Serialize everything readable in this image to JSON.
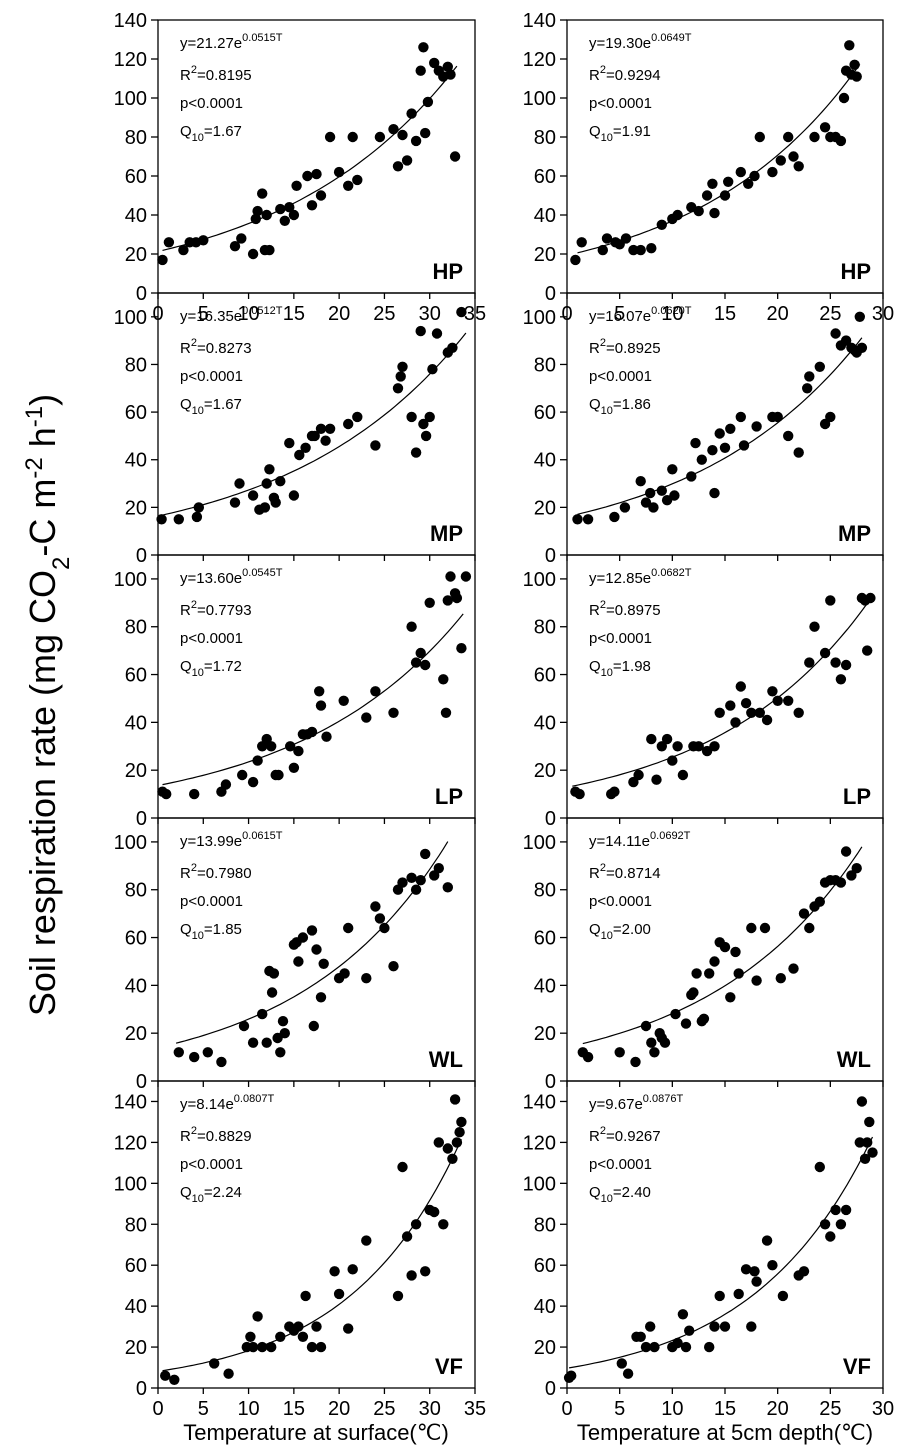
{
  "figure": {
    "ylabel_html": [
      "Soil respiration rate (mg CO",
      "2",
      "-C m",
      "-2",
      " h",
      "-1",
      ")"
    ],
    "xlabels": [
      "Temperature at surface(℃)",
      "Temperature at 5cm depth(℃)"
    ]
  },
  "chart_data": [
    {
      "type": "scatter",
      "site": "HP",
      "col": 0,
      "row": 0,
      "x": [
        0.5,
        1.2,
        2.8,
        3.5,
        4.2,
        5.0,
        8.5,
        9.2,
        10.5,
        10.8,
        11.0,
        11.5,
        11.8,
        12.0,
        12.3,
        13.5,
        14.0,
        14.5,
        15.0,
        15.3,
        16.5,
        17.0,
        17.5,
        18.0,
        19.0,
        20.0,
        21.0,
        21.5,
        22.0,
        24.5,
        26.0,
        26.5,
        27.0,
        27.5,
        28.0,
        28.5,
        29.0,
        29.3,
        29.5,
        29.8,
        30.5,
        31.0,
        31.5,
        32.0,
        32.3,
        32.8
      ],
      "y": [
        17,
        26,
        22,
        26,
        26,
        27,
        24,
        28,
        20,
        38,
        42,
        51,
        22,
        40,
        22,
        43,
        37,
        44,
        40,
        55,
        60,
        45,
        61,
        50,
        80,
        62,
        55,
        80,
        58,
        80,
        84,
        65,
        81,
        68,
        92,
        78,
        114,
        126,
        82,
        98,
        118,
        114,
        111,
        116,
        112,
        70
      ],
      "xlim": [
        0,
        35
      ],
      "ylim": [
        0,
        140
      ],
      "xticks": [
        0,
        5,
        10,
        15,
        20,
        25,
        30,
        35
      ],
      "yticks": [
        0,
        20,
        40,
        60,
        80,
        100,
        120,
        140
      ],
      "fit": {
        "a": 21.27,
        "b": 0.0515,
        "xmin": 0.5,
        "xmax": 33
      },
      "eq": {
        "base": "y=21.27e",
        "exp": "0.0515T"
      },
      "r2": "=0.8195",
      "p": "p<0.0001",
      "q10": "=1.67"
    },
    {
      "type": "scatter",
      "site": "HP",
      "col": 1,
      "row": 0,
      "x": [
        0.8,
        1.4,
        3.4,
        3.8,
        4.6,
        5.0,
        5.6,
        6.3,
        7.0,
        8.0,
        9.0,
        10.0,
        10.5,
        11.8,
        12.5,
        13.3,
        13.8,
        14.0,
        15.0,
        15.3,
        16.5,
        17.2,
        17.8,
        18.3,
        19.5,
        20.3,
        21.0,
        21.5,
        22.0,
        23.5,
        24.5,
        25.0,
        25.5,
        26.0,
        26.3,
        26.5,
        26.8,
        27.0,
        27.3,
        27.5
      ],
      "y": [
        17,
        26,
        22,
        28,
        26,
        25,
        28,
        22,
        22,
        23,
        35,
        38,
        40,
        44,
        42,
        50,
        56,
        41,
        50,
        57,
        62,
        56,
        60,
        80,
        62,
        68,
        80,
        70,
        65,
        80,
        85,
        80,
        80,
        78,
        100,
        114,
        127,
        112,
        117,
        111
      ],
      "xlim": [
        0,
        30
      ],
      "ylim": [
        0,
        140
      ],
      "xticks": [
        0,
        5,
        10,
        15,
        20,
        25,
        30
      ],
      "yticks": [
        0,
        20,
        40,
        60,
        80,
        100,
        120,
        140
      ],
      "fit": {
        "a": 19.3,
        "b": 0.0649,
        "xmin": 1,
        "xmax": 27.8
      },
      "eq": {
        "base": "y=19.30e",
        "exp": "0.0649T"
      },
      "r2": "=0.9294",
      "p": "p<0.0001",
      "q10": "=1.91"
    },
    {
      "type": "scatter",
      "site": "MP",
      "col": 0,
      "row": 1,
      "x": [
        0.4,
        2.3,
        4.3,
        4.5,
        8.5,
        9.0,
        10.5,
        11.2,
        11.8,
        12.0,
        12.3,
        12.8,
        13.0,
        13.5,
        14.5,
        15.0,
        15.6,
        16.3,
        17.0,
        17.3,
        18.0,
        18.5,
        19.0,
        21.0,
        22.0,
        24.0,
        26.5,
        26.8,
        27.0,
        28.0,
        28.5,
        29.0,
        29.3,
        29.6,
        30.0,
        30.3,
        30.8,
        32.0,
        32.5,
        33.5
      ],
      "y": [
        15,
        15,
        16,
        20,
        22,
        30,
        25,
        19,
        20,
        30,
        36,
        24,
        22,
        31,
        47,
        25,
        42,
        45,
        50,
        50,
        53,
        48,
        53,
        55,
        58,
        46,
        70,
        75,
        79,
        58,
        43,
        94,
        55,
        50,
        58,
        78,
        93,
        85,
        87,
        102
      ],
      "xlim": [
        0,
        35
      ],
      "ylim": [
        0,
        110
      ],
      "xticks": [],
      "yticks": [
        0,
        20,
        40,
        60,
        80,
        100
      ],
      "fit": {
        "a": 16.35,
        "b": 0.0512,
        "xmin": 0.4,
        "xmax": 34
      },
      "eq": {
        "base": "y=16.35e",
        "exp": "0.0512T"
      },
      "r2": "=0.8273",
      "p": "p<0.0001",
      "q10": "=1.67"
    },
    {
      "type": "scatter",
      "site": "MP",
      "col": 1,
      "row": 1,
      "x": [
        1.0,
        2.0,
        4.5,
        5.5,
        7.0,
        7.5,
        7.9,
        8.2,
        9.0,
        9.5,
        10.0,
        10.2,
        11.8,
        12.2,
        12.8,
        13.8,
        14.0,
        14.5,
        15.0,
        15.5,
        16.5,
        16.8,
        18.0,
        19.5,
        20.0,
        21.0,
        22.0,
        22.8,
        23.0,
        24.0,
        24.5,
        25.0,
        25.5,
        26.0,
        26.5,
        27.0,
        27.3,
        27.5,
        27.8,
        28.0
      ],
      "y": [
        15,
        15,
        16,
        20,
        31,
        22,
        26,
        20,
        27,
        23,
        36,
        25,
        33,
        47,
        40,
        44,
        26,
        51,
        45,
        53,
        58,
        46,
        54,
        58,
        58,
        50,
        43,
        70,
        75,
        79,
        55,
        58,
        93,
        88,
        90,
        87,
        86,
        85,
        100,
        87
      ],
      "xlim": [
        0,
        30
      ],
      "ylim": [
        0,
        110
      ],
      "xticks": [],
      "yticks": [
        0,
        20,
        40,
        60,
        80,
        100
      ],
      "fit": {
        "a": 16.07,
        "b": 0.062,
        "xmin": 1,
        "xmax": 28
      },
      "eq": {
        "base": "y=16.07e",
        "exp": "0.0620T"
      },
      "r2": "=0.8925",
      "p": "p<0.0001",
      "q10": "=1.86"
    },
    {
      "type": "scatter",
      "site": "LP",
      "col": 0,
      "row": 2,
      "x": [
        0.5,
        0.9,
        4.0,
        7.0,
        7.5,
        9.3,
        10.5,
        11.0,
        11.5,
        12.0,
        12.5,
        13.0,
        13.3,
        14.6,
        15.0,
        15.5,
        16.0,
        16.5,
        17.0,
        17.8,
        18.0,
        18.6,
        20.5,
        23.0,
        24.0,
        26.0,
        28.0,
        28.5,
        29.0,
        29.5,
        30.0,
        31.5,
        31.8,
        32.0,
        32.3,
        32.8,
        33.0,
        33.5,
        34.0
      ],
      "y": [
        11,
        10,
        10,
        11,
        14,
        18,
        15,
        24,
        30,
        33,
        30,
        18,
        18,
        30,
        21,
        28,
        35,
        35,
        36,
        53,
        47,
        34,
        49,
        42,
        53,
        44,
        80,
        65,
        69,
        64,
        90,
        58,
        44,
        91,
        101,
        94,
        92,
        71,
        101
      ],
      "xlim": [
        0,
        35
      ],
      "ylim": [
        0,
        110
      ],
      "xticks": [],
      "yticks": [
        0,
        20,
        40,
        60,
        80,
        100
      ],
      "fit": {
        "a": 13.6,
        "b": 0.0545,
        "xmin": 0.5,
        "xmax": 33.7
      },
      "eq": {
        "base": "y=13.60e",
        "exp": "0.0545T"
      },
      "r2": "=0.7793",
      "p": "p<0.0001",
      "q10": "=1.72"
    },
    {
      "type": "scatter",
      "site": "LP",
      "col": 1,
      "row": 2,
      "x": [
        0.8,
        1.2,
        4.2,
        4.5,
        6.3,
        6.8,
        8.0,
        8.5,
        9.0,
        9.5,
        10.0,
        10.5,
        11.0,
        12.0,
        12.5,
        13.3,
        14.0,
        14.5,
        15.5,
        16.0,
        16.5,
        17.0,
        17.5,
        18.3,
        19.0,
        19.5,
        20.0,
        21.0,
        22.0,
        23.0,
        23.5,
        24.5,
        25.0,
        25.5,
        26.0,
        26.5,
        28.0,
        28.3,
        28.5,
        28.8
      ],
      "y": [
        11,
        10,
        10,
        11,
        15,
        18,
        33,
        16,
        30,
        33,
        24,
        30,
        18,
        30,
        30,
        28,
        30,
        44,
        47,
        40,
        55,
        48,
        44,
        44,
        41,
        53,
        49,
        49,
        44,
        65,
        80,
        69,
        91,
        65,
        58,
        64,
        92,
        91,
        70,
        92
      ],
      "xlim": [
        0,
        30
      ],
      "ylim": [
        0,
        110
      ],
      "xticks": [],
      "yticks": [
        0,
        20,
        40,
        60,
        80,
        100
      ],
      "fit": {
        "a": 12.85,
        "b": 0.0682,
        "xmin": 0.5,
        "xmax": 29
      },
      "eq": {
        "base": "y=12.85e",
        "exp": "0.0682T"
      },
      "r2": "=0.8975",
      "p": "p<0.0001",
      "q10": "=1.98"
    },
    {
      "type": "scatter",
      "site": "WL",
      "col": 0,
      "row": 3,
      "x": [
        2.3,
        4.0,
        5.5,
        7.0,
        9.5,
        10.5,
        11.5,
        12.0,
        12.3,
        12.6,
        12.8,
        13.2,
        13.5,
        13.8,
        14.0,
        15.0,
        15.3,
        15.5,
        16.0,
        17.0,
        17.2,
        17.5,
        18.0,
        18.3,
        20.0,
        20.6,
        21.0,
        23.0,
        24.0,
        24.5,
        25.0,
        26.0,
        26.5,
        27.0,
        28.0,
        28.5,
        29.0,
        29.5,
        30.5,
        31.0,
        32.0
      ],
      "y": [
        12,
        10,
        12,
        8,
        23,
        16,
        28,
        16,
        46,
        37,
        45,
        18,
        12,
        25,
        20,
        57,
        58,
        50,
        60,
        63,
        23,
        55,
        35,
        49,
        43,
        45,
        64,
        43,
        73,
        68,
        64,
        48,
        80,
        83,
        85,
        80,
        84,
        95,
        86,
        89,
        81
      ],
      "xlim": [
        0,
        35
      ],
      "ylim": [
        0,
        110
      ],
      "xticks": [],
      "yticks": [
        0,
        20,
        40,
        60,
        80,
        100
      ],
      "fit": {
        "a": 13.99,
        "b": 0.0615,
        "xmin": 2,
        "xmax": 32
      },
      "eq": {
        "base": "y=13.99e",
        "exp": "0.0615T"
      },
      "r2": "=0.7980",
      "p": "p<0.0001",
      "q10": "=1.85"
    },
    {
      "type": "scatter",
      "site": "WL",
      "col": 1,
      "row": 3,
      "x": [
        1.5,
        2.0,
        5.0,
        6.5,
        7.5,
        8.0,
        8.3,
        8.8,
        9.0,
        9.3,
        10.3,
        11.3,
        11.8,
        12.0,
        12.3,
        12.8,
        13.0,
        13.5,
        14.0,
        14.5,
        15.0,
        15.5,
        16.0,
        16.3,
        17.5,
        18.0,
        18.8,
        20.3,
        21.5,
        22.5,
        23.0,
        23.5,
        24.0,
        24.5,
        25.0,
        25.5,
        26.0,
        26.5,
        27.0,
        27.5
      ],
      "y": [
        12,
        10,
        12,
        8,
        23,
        16,
        12,
        20,
        18,
        16,
        28,
        24,
        36,
        37,
        45,
        25,
        26,
        45,
        50,
        58,
        56,
        35,
        54,
        45,
        64,
        42,
        64,
        43,
        47,
        70,
        64,
        73,
        75,
        83,
        84,
        84,
        83,
        96,
        86,
        89
      ],
      "xlim": [
        0,
        30
      ],
      "ylim": [
        0,
        110
      ],
      "xticks": [],
      "yticks": [
        0,
        20,
        40,
        60,
        80,
        100
      ],
      "fit": {
        "a": 14.11,
        "b": 0.0692,
        "xmin": 1.5,
        "xmax": 28
      },
      "eq": {
        "base": "y=14.11e",
        "exp": "0.0692T"
      },
      "r2": "=0.8714",
      "p": "p<0.0001",
      "q10": "=2.00"
    },
    {
      "type": "scatter",
      "site": "VF",
      "col": 0,
      "row": 4,
      "x": [
        0.8,
        1.8,
        6.2,
        7.8,
        9.8,
        10.2,
        10.5,
        11.0,
        11.5,
        12.5,
        13.5,
        14.5,
        15.0,
        15.5,
        16.0,
        16.3,
        17.0,
        17.5,
        18.0,
        19.5,
        20.0,
        21.0,
        21.5,
        23.0,
        26.5,
        27.0,
        27.5,
        28.0,
        28.5,
        29.5,
        30.0,
        30.5,
        31.0,
        31.5,
        32.0,
        32.5,
        32.8,
        33.0,
        33.3,
        33.5
      ],
      "y": [
        6,
        4,
        12,
        7,
        20,
        25,
        20,
        35,
        20,
        20,
        25,
        30,
        28,
        30,
        25,
        45,
        20,
        30,
        20,
        57,
        46,
        29,
        58,
        72,
        45,
        108,
        74,
        55,
        80,
        57,
        87,
        86,
        120,
        80,
        117,
        112,
        141,
        120,
        125,
        130
      ],
      "xlim": [
        0,
        35
      ],
      "ylim": [
        0,
        150
      ],
      "xticks": [
        0,
        5,
        10,
        15,
        20,
        25,
        30,
        35
      ],
      "yticks": [
        0,
        20,
        40,
        60,
        80,
        100,
        120,
        140
      ],
      "fit": {
        "a": 8.14,
        "b": 0.0807,
        "xmin": 0.5,
        "xmax": 33.5
      },
      "eq": {
        "base": "y=8.14e",
        "exp": "0.0807T"
      },
      "r2": "=0.8829",
      "p": "p<0.0001",
      "q10": "=2.24"
    },
    {
      "type": "scatter",
      "site": "VF",
      "col": 1,
      "row": 4,
      "x": [
        0.2,
        0.4,
        5.2,
        5.8,
        6.6,
        7.0,
        7.5,
        7.9,
        8.3,
        10.0,
        10.5,
        11.0,
        11.3,
        11.6,
        13.5,
        14.0,
        14.5,
        15.0,
        16.3,
        17.0,
        17.5,
        17.8,
        18.0,
        19.0,
        19.5,
        20.5,
        22.0,
        22.5,
        24.0,
        24.5,
        25.0,
        25.5,
        26.0,
        26.5,
        27.8,
        28.0,
        28.3,
        28.5,
        28.7,
        29.0
      ],
      "y": [
        5,
        6,
        12,
        7,
        25,
        25,
        20,
        30,
        20,
        20,
        22,
        36,
        20,
        28,
        20,
        30,
        45,
        30,
        46,
        58,
        30,
        57,
        52,
        72,
        60,
        45,
        55,
        57,
        108,
        80,
        74,
        87,
        80,
        87,
        120,
        140,
        112,
        120,
        130,
        115
      ],
      "xlim": [
        0,
        30
      ],
      "ylim": [
        0,
        150
      ],
      "xticks": [
        0,
        5,
        10,
        15,
        20,
        25,
        30
      ],
      "yticks": [
        0,
        20,
        40,
        60,
        80,
        100,
        120,
        140
      ],
      "fit": {
        "a": 9.67,
        "b": 0.0876,
        "xmin": 0.2,
        "xmax": 29
      },
      "eq": {
        "base": "y=9.67e",
        "exp": "0.0876T"
      },
      "r2": "=0.9267",
      "p": "p<0.0001",
      "q10": "=2.40"
    }
  ]
}
